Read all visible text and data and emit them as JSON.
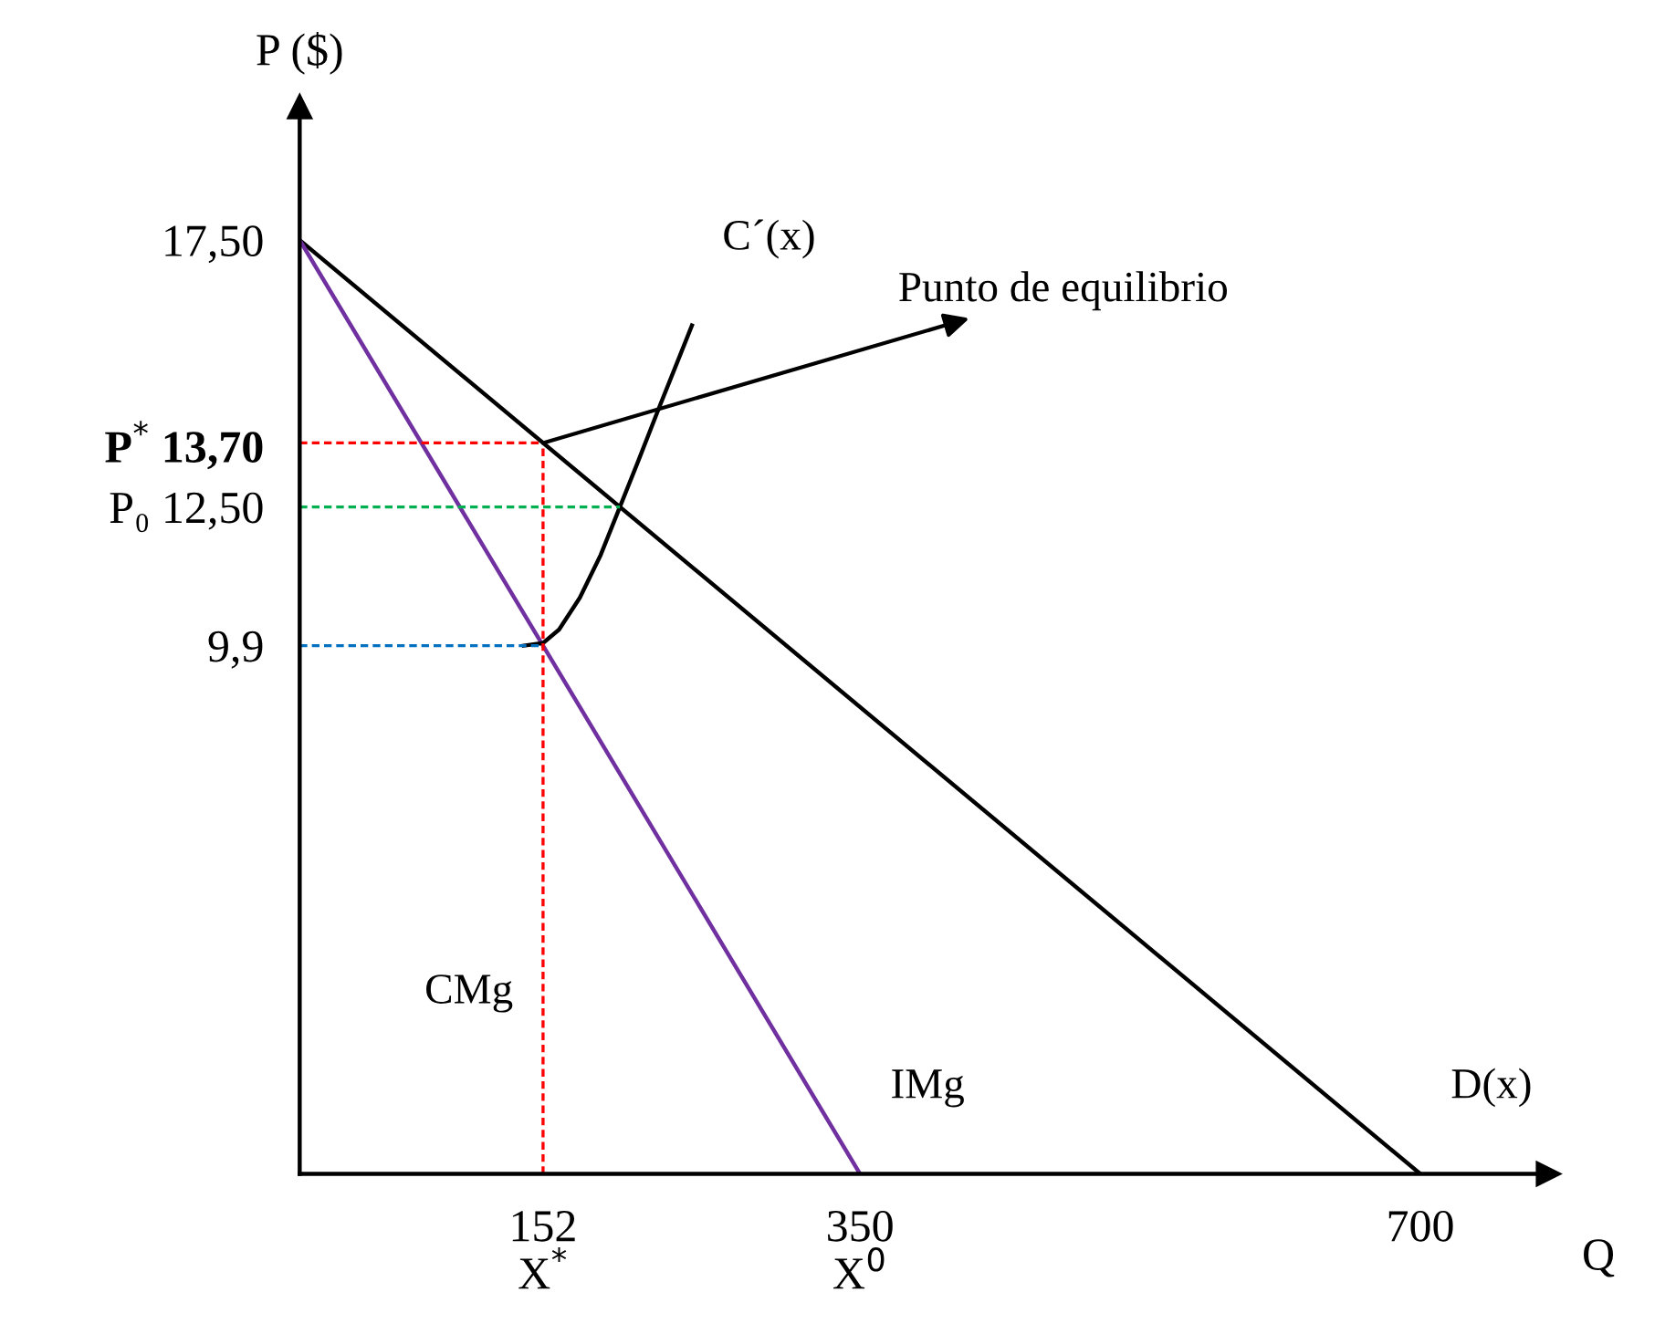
{
  "chart_data": {
    "type": "line",
    "xlabel": "Q",
    "ylabel": "P ($)",
    "xlim": [
      0,
      780
    ],
    "ylim": [
      0,
      20
    ],
    "xticks": [
      {
        "value": 152,
        "label": "152\nX$^{*}$"
      },
      {
        "value": 350,
        "label": "350\nX$^{0}$"
      },
      700
    ],
    "yticks": [
      {
        "value": 9.9,
        "label": "9,9"
      },
      {
        "value": 12.5,
        "label": "P₀ 12,50"
      },
      {
        "value": 13.7,
        "label": "P$^{*}$ 13,70"
      },
      {
        "value": 17.5,
        "label": "17,50"
      }
    ],
    "grid": false,
    "legend": false,
    "marker": "none",
    "series": [
      {
        "name": "D(x)",
        "color": "#000000",
        "x": [
          0,
          700
        ],
        "values": [
          17.5,
          0
        ],
        "line_style": "solid"
      },
      {
        "name": "IMg",
        "color": "#7030a0",
        "x": [
          0,
          350
        ],
        "values": [
          17.5,
          0
        ],
        "line_style": "solid"
      },
      {
        "name": "C´(x)",
        "color": "#000000",
        "x": [
          140,
          152,
          162,
          175,
          188,
          200,
          212,
          225,
          237,
          245
        ],
        "values": [
          9.9,
          9.95,
          10.2,
          10.8,
          11.6,
          12.5,
          13.4,
          14.4,
          15.3,
          15.9
        ],
        "line_style": "solid"
      },
      {
        "color": "#ff0000",
        "x": [
          0,
          152
        ],
        "values": [
          13.7,
          13.7
        ],
        "line_style": "dashed"
      },
      {
        "color": "#ff0000",
        "x": [
          152,
          152
        ],
        "values": [
          0,
          13.7
        ],
        "line_style": "dashed"
      },
      {
        "color": "#00b050",
        "x": [
          0,
          200
        ],
        "values": [
          12.5,
          12.5
        ],
        "line_style": "dashed"
      },
      {
        "color": "#0070c0",
        "x": [
          0,
          152
        ],
        "values": [
          9.9,
          9.9
        ],
        "line_style": "dashed"
      }
    ],
    "annotations": [
      {
        "text": "Punto de equilibrio",
        "x": 152,
        "y": 13.7
      },
      "CMg"
    ]
  }
}
